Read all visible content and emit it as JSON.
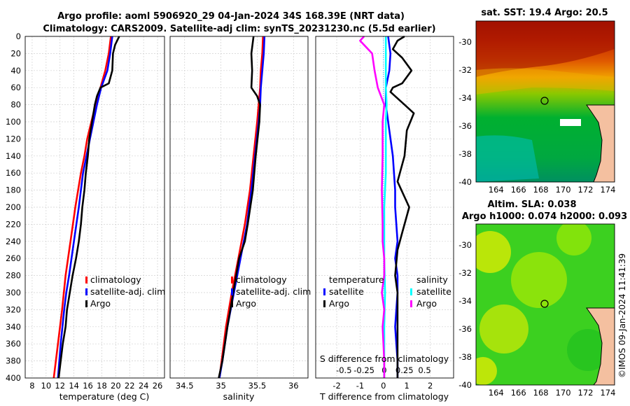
{
  "header": {
    "line1": "Argo profile: aoml 5906920_29 04-Jan-2024 34S 168.39E (NRT data)",
    "line2": "Climatology: CARS2009. Satellite-adj clim: synTS_20231230.nc (5.5d earlier)"
  },
  "colors": {
    "climatology": "#ff0000",
    "satellite": "#0000ff",
    "argo": "#000000",
    "sal_satellite": "#00ffff",
    "sal_argo": "#ff00ff"
  },
  "depth_axis": {
    "ticks": [
      0,
      20,
      40,
      60,
      80,
      100,
      120,
      140,
      160,
      180,
      200,
      220,
      240,
      260,
      280,
      300,
      320,
      340,
      360,
      380,
      400
    ]
  },
  "chart_data": [
    {
      "type": "line",
      "name": "temperature_profile",
      "xlabel": "temperature (deg C)",
      "xlim": [
        7,
        27
      ],
      "ylim": [
        0,
        400
      ],
      "xticks": [
        8,
        10,
        12,
        14,
        16,
        18,
        20,
        22,
        24,
        26
      ],
      "legend": [
        "climatology",
        "satellite-adj. clim",
        "Argo"
      ],
      "series": [
        {
          "name": "climatology",
          "color": "#ff0000",
          "depth": [
            0,
            20,
            40,
            60,
            80,
            100,
            120,
            140,
            160,
            200,
            240,
            280,
            320,
            360,
            400
          ],
          "values": [
            19.3,
            19.0,
            18.5,
            17.8,
            17.1,
            16.5,
            15.9,
            15.5,
            15.0,
            14.2,
            13.5,
            12.8,
            12.3,
            11.7,
            11.1
          ]
        },
        {
          "name": "satellite-adj. clim",
          "color": "#0000ff",
          "depth": [
            0,
            20,
            40,
            60,
            80,
            100,
            120,
            140,
            160,
            200,
            240,
            280,
            300,
            320,
            360,
            400
          ],
          "values": [
            19.5,
            19.2,
            18.8,
            17.9,
            17.3,
            16.8,
            16.3,
            15.8,
            15.3,
            14.7,
            14.0,
            13.3,
            12.9,
            12.6,
            12.1,
            11.7
          ]
        },
        {
          "name": "Argo",
          "color": "#000000",
          "depth": [
            0,
            10,
            20,
            40,
            55,
            60,
            70,
            80,
            100,
            120,
            140,
            160,
            180,
            200,
            220,
            240,
            260,
            280,
            300,
            320,
            340,
            360,
            380,
            400
          ],
          "values": [
            20.5,
            19.9,
            19.6,
            19.5,
            19.0,
            17.8,
            17.3,
            17.0,
            16.6,
            16.2,
            16.0,
            15.7,
            15.5,
            15.2,
            15.0,
            14.7,
            14.3,
            13.8,
            13.4,
            13.0,
            12.8,
            12.4,
            12.1,
            11.8
          ]
        }
      ]
    },
    {
      "type": "line",
      "name": "salinity_profile",
      "xlabel": "salinity",
      "xlim": [
        34.3,
        36.2
      ],
      "ylim": [
        0,
        400
      ],
      "xticks": [
        "34.5",
        "35",
        "35.5",
        "36"
      ],
      "legend": [
        "climatology",
        "satellite-adj. clim",
        "Argo"
      ],
      "series": [
        {
          "name": "climatology",
          "color": "#ff0000",
          "depth": [
            0,
            20,
            40,
            60,
            80,
            100,
            140,
            180,
            220,
            260,
            300,
            340,
            380,
            400
          ],
          "values": [
            35.58,
            35.57,
            35.55,
            35.54,
            35.52,
            35.5,
            35.45,
            35.4,
            35.33,
            35.24,
            35.15,
            35.07,
            35.01,
            34.98
          ]
        },
        {
          "name": "satellite-adj. clim",
          "color": "#0000ff",
          "depth": [
            0,
            20,
            40,
            60,
            80,
            100,
            140,
            180,
            220,
            260,
            300,
            340,
            380,
            400
          ],
          "values": [
            35.6,
            35.59,
            35.57,
            35.55,
            35.54,
            35.52,
            35.47,
            35.42,
            35.36,
            35.27,
            35.18,
            35.09,
            35.02,
            34.98
          ]
        },
        {
          "name": "Argo",
          "color": "#000000",
          "depth": [
            0,
            20,
            40,
            60,
            70,
            80,
            100,
            140,
            180,
            220,
            240,
            260,
            300,
            340,
            380,
            400
          ],
          "values": [
            35.45,
            35.42,
            35.43,
            35.42,
            35.5,
            35.54,
            35.53,
            35.48,
            35.44,
            35.37,
            35.33,
            35.25,
            35.17,
            35.09,
            35.02,
            34.97
          ]
        }
      ]
    },
    {
      "type": "line",
      "name": "difference_profile",
      "xlabel": "T difference from climatology",
      "xlabel2": "S difference from climatology",
      "xlim": [
        -2.9,
        3.0
      ],
      "ylim": [
        0,
        400
      ],
      "xticks": [
        "-2",
        "-1",
        "0",
        "1",
        "2"
      ],
      "sticks": [
        "-0.5",
        "-0.25",
        "0",
        "0.25",
        "0.5"
      ],
      "legend_temperature_title": "temperature",
      "legend_salinity_title": "salinity",
      "legend_t": [
        "satellite",
        "Argo"
      ],
      "legend_s": [
        "satellite",
        "Argo"
      ],
      "series": [
        {
          "name": "T satellite",
          "color": "#0000ff",
          "depth": [
            0,
            20,
            40,
            60,
            80,
            100,
            140,
            180,
            200,
            240,
            260,
            280,
            300,
            340,
            380,
            400
          ],
          "values": [
            0.2,
            0.3,
            0.25,
            0.1,
            0.1,
            0.2,
            0.4,
            0.5,
            0.5,
            0.6,
            0.5,
            0.6,
            0.6,
            0.5,
            0.6,
            0.6
          ]
        },
        {
          "name": "T Argo",
          "color": "#000000",
          "depth": [
            0,
            5,
            15,
            25,
            40,
            55,
            60,
            65,
            70,
            80,
            90,
            110,
            140,
            170,
            200,
            230,
            250,
            280,
            300,
            340,
            380,
            400
          ],
          "values": [
            0.9,
            0.6,
            0.4,
            0.8,
            1.2,
            0.8,
            0.4,
            0.3,
            0.5,
            0.9,
            1.3,
            1.0,
            0.9,
            0.6,
            1.1,
            0.8,
            0.6,
            0.5,
            0.6,
            0.6,
            0.6,
            0.6
          ]
        },
        {
          "name": "S satellite",
          "color": "#00ffff",
          "depth": [
            0,
            20,
            40,
            60,
            80,
            100,
            160,
            200,
            260,
            300,
            340,
            400
          ],
          "values": [
            0.02,
            0.02,
            0.02,
            0.02,
            0.03,
            0.02,
            0.02,
            0.0,
            0.0,
            0.01,
            0.0,
            0.0
          ]
        },
        {
          "name": "S Argo",
          "color": "#ff00ff",
          "depth": [
            0,
            5,
            10,
            20,
            40,
            60,
            70,
            80,
            100,
            140,
            180,
            220,
            240,
            260,
            280,
            300,
            320,
            340,
            380,
            400
          ],
          "values": [
            -0.25,
            -0.3,
            -0.25,
            -0.15,
            -0.12,
            -0.08,
            -0.04,
            0.0,
            -0.02,
            -0.02,
            -0.03,
            -0.02,
            -0.02,
            0.0,
            0.0,
            -0.03,
            0.0,
            -0.02,
            0.0,
            0.0
          ]
        }
      ]
    },
    {
      "type": "heatmap",
      "name": "sst_map",
      "title": "sat. SST: 19.4  Argo: 20.5",
      "xlim": [
        162.2,
        174.6
      ],
      "ylim": [
        -40,
        -28.5
      ],
      "xticks": [
        "164",
        "166",
        "168",
        "170",
        "172",
        "174"
      ],
      "yticks": [
        "-30",
        "-32",
        "-34",
        "-36",
        "-38",
        "-40"
      ],
      "marker": {
        "lon": 168.39,
        "lat": -34
      }
    },
    {
      "type": "heatmap",
      "name": "sla_map",
      "title": "Altim. SLA: 0.038",
      "subtitle": "Argo h1000: 0.074  h2000: 0.093",
      "xlim": [
        162.2,
        174.6
      ],
      "ylim": [
        -40,
        -28.5
      ],
      "xticks": [
        "164",
        "166",
        "168",
        "170",
        "172",
        "174"
      ],
      "yticks": [
        "-30",
        "-32",
        "-34",
        "-36",
        "-38",
        "-40"
      ],
      "marker": {
        "lon": 168.39,
        "lat": -34
      }
    }
  ],
  "watermark": "©IMOS 09-Jan-2024 11:41:39"
}
